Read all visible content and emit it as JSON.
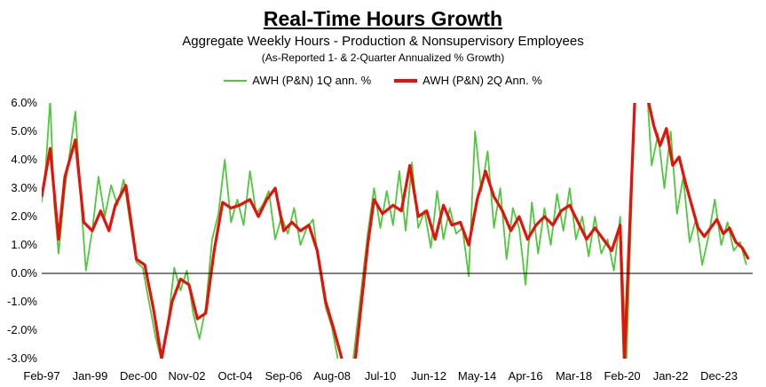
{
  "chart_data": {
    "type": "line",
    "title": "Real-Time Hours Growth",
    "subtitle": "Aggregate Weekly Hours - Production & Nonsupervisory Employees",
    "note": "(As-Reported 1- & 2-Quarter Annualized % Growth)",
    "xlabel": "",
    "ylabel": "",
    "ylim": [
      -3.0,
      6.0
    ],
    "xlim": [
      "1997-02",
      "2025-04"
    ],
    "y_ticks": [
      "6.0%",
      "5.0%",
      "4.0%",
      "3.0%",
      "2.0%",
      "1.0%",
      "0.0%",
      "-1.0%",
      "-2.0%",
      "-3.0%"
    ],
    "x_ticks": [
      "Feb-97",
      "Jan-99",
      "Dec-00",
      "Nov-02",
      "Oct-04",
      "Sep-06",
      "Aug-08",
      "Jul-10",
      "Jun-12",
      "May-14",
      "Apr-16",
      "Mar-18",
      "Feb-20",
      "Jan-22",
      "Dec-23"
    ],
    "grid": false,
    "legend_position": "top-center",
    "series": [
      {
        "name": "AWH (P&N) 1Q ann. %",
        "color": "#4fc83c",
        "points": [
          [
            "1997-02",
            2.5
          ],
          [
            "1997-04",
            3.8
          ],
          [
            "1997-06",
            6.1
          ],
          [
            "1997-08",
            2.4
          ],
          [
            "1997-10",
            0.7
          ],
          [
            "1998-01",
            3.0
          ],
          [
            "1998-04",
            4.6
          ],
          [
            "1998-06",
            5.7
          ],
          [
            "1998-09",
            2.2
          ],
          [
            "1998-11",
            0.1
          ],
          [
            "1999-02",
            1.5
          ],
          [
            "1999-05",
            3.4
          ],
          [
            "1999-08",
            2.0
          ],
          [
            "1999-11",
            3.1
          ],
          [
            "2000-02",
            2.4
          ],
          [
            "2000-05",
            3.3
          ],
          [
            "2000-08",
            1.8
          ],
          [
            "2000-11",
            0.4
          ],
          [
            "2001-02",
            0.2
          ],
          [
            "2001-05",
            -1.0
          ],
          [
            "2001-08",
            -2.2
          ],
          [
            "2001-11",
            -3.1
          ],
          [
            "2002-02",
            -1.8
          ],
          [
            "2002-05",
            0.2
          ],
          [
            "2002-08",
            -0.6
          ],
          [
            "2002-11",
            0.1
          ],
          [
            "2003-02",
            -1.4
          ],
          [
            "2003-05",
            -2.3
          ],
          [
            "2003-08",
            -1.2
          ],
          [
            "2003-11",
            1.2
          ],
          [
            "2004-02",
            2.1
          ],
          [
            "2004-05",
            4.0
          ],
          [
            "2004-08",
            1.8
          ],
          [
            "2004-11",
            2.6
          ],
          [
            "2005-02",
            1.7
          ],
          [
            "2005-05",
            3.6
          ],
          [
            "2005-08",
            2.1
          ],
          [
            "2005-11",
            2.4
          ],
          [
            "2006-02",
            2.9
          ],
          [
            "2006-05",
            1.2
          ],
          [
            "2006-08",
            2.0
          ],
          [
            "2006-11",
            1.4
          ],
          [
            "2007-02",
            2.3
          ],
          [
            "2007-05",
            1.0
          ],
          [
            "2007-08",
            1.6
          ],
          [
            "2007-11",
            1.9
          ],
          [
            "2008-02",
            0.2
          ],
          [
            "2008-05",
            -1.2
          ],
          [
            "2008-08",
            -1.9
          ],
          [
            "2008-11",
            -3.1
          ],
          [
            "2009-06",
            -3.1
          ],
          [
            "2010-01",
            1.4
          ],
          [
            "2010-04",
            3.0
          ],
          [
            "2010-07",
            1.6
          ],
          [
            "2010-10",
            2.9
          ],
          [
            "2011-01",
            1.7
          ],
          [
            "2011-04",
            3.6
          ],
          [
            "2011-07",
            1.5
          ],
          [
            "2011-10",
            3.9
          ],
          [
            "2012-01",
            1.6
          ],
          [
            "2012-04",
            2.2
          ],
          [
            "2012-07",
            0.9
          ],
          [
            "2012-10",
            2.9
          ],
          [
            "2013-01",
            1.2
          ],
          [
            "2013-04",
            2.3
          ],
          [
            "2013-07",
            1.4
          ],
          [
            "2013-10",
            1.6
          ],
          [
            "2014-01",
            -0.1
          ],
          [
            "2014-04",
            5.0
          ],
          [
            "2014-07",
            2.9
          ],
          [
            "2014-10",
            4.3
          ],
          [
            "2015-01",
            1.6
          ],
          [
            "2015-04",
            3.0
          ],
          [
            "2015-07",
            0.5
          ],
          [
            "2015-10",
            2.3
          ],
          [
            "2016-01",
            1.6
          ],
          [
            "2016-04",
            -0.4
          ],
          [
            "2016-07",
            2.5
          ],
          [
            "2016-10",
            0.7
          ],
          [
            "2017-01",
            2.3
          ],
          [
            "2017-04",
            1.0
          ],
          [
            "2017-07",
            2.8
          ],
          [
            "2017-10",
            1.5
          ],
          [
            "2018-01",
            3.0
          ],
          [
            "2018-04",
            1.2
          ],
          [
            "2018-07",
            2.0
          ],
          [
            "2018-10",
            0.6
          ],
          [
            "2019-01",
            2.0
          ],
          [
            "2019-04",
            0.7
          ],
          [
            "2019-07",
            1.2
          ],
          [
            "2019-10",
            0.1
          ],
          [
            "2020-01",
            2.0
          ],
          [
            "2020-04",
            -3.1
          ],
          [
            "2020-08",
            6.2
          ],
          [
            "2020-11",
            6.2
          ],
          [
            "2021-02",
            6.2
          ],
          [
            "2021-04",
            3.8
          ],
          [
            "2021-07",
            4.9
          ],
          [
            "2021-10",
            3.0
          ],
          [
            "2022-01",
            5.0
          ],
          [
            "2022-04",
            2.1
          ],
          [
            "2022-07",
            3.4
          ],
          [
            "2022-10",
            1.1
          ],
          [
            "2023-01",
            1.9
          ],
          [
            "2023-04",
            0.3
          ],
          [
            "2023-07",
            1.3
          ],
          [
            "2023-10",
            2.6
          ],
          [
            "2024-01",
            1.0
          ],
          [
            "2024-04",
            1.8
          ],
          [
            "2024-07",
            0.8
          ],
          [
            "2024-10",
            1.1
          ],
          [
            "2025-01",
            0.3
          ]
        ]
      },
      {
        "name": "AWH (P&N) 2Q Ann. %",
        "color": "#e3120b",
        "points": [
          [
            "1997-02",
            2.7
          ],
          [
            "1997-06",
            4.4
          ],
          [
            "1997-10",
            1.2
          ],
          [
            "1998-01",
            3.4
          ],
          [
            "1998-06",
            4.7
          ],
          [
            "1998-10",
            1.8
          ],
          [
            "1999-02",
            1.5
          ],
          [
            "1999-06",
            2.2
          ],
          [
            "1999-10",
            1.5
          ],
          [
            "2000-01",
            2.4
          ],
          [
            "2000-06",
            3.1
          ],
          [
            "2000-11",
            0.5
          ],
          [
            "2001-03",
            0.3
          ],
          [
            "2001-07",
            -1.2
          ],
          [
            "2001-11",
            -3.0
          ],
          [
            "2002-04",
            -1.0
          ],
          [
            "2002-08",
            -0.2
          ],
          [
            "2002-12",
            -0.4
          ],
          [
            "2003-04",
            -1.6
          ],
          [
            "2003-08",
            -1.4
          ],
          [
            "2003-12",
            0.8
          ],
          [
            "2004-04",
            2.5
          ],
          [
            "2004-08",
            2.3
          ],
          [
            "2004-12",
            2.4
          ],
          [
            "2005-05",
            2.6
          ],
          [
            "2005-09",
            2.0
          ],
          [
            "2006-01",
            2.6
          ],
          [
            "2006-05",
            3.0
          ],
          [
            "2006-09",
            1.5
          ],
          [
            "2007-01",
            1.8
          ],
          [
            "2007-05",
            1.5
          ],
          [
            "2007-09",
            1.7
          ],
          [
            "2008-01",
            0.8
          ],
          [
            "2008-05",
            -1.0
          ],
          [
            "2008-09",
            -2.0
          ],
          [
            "2009-01",
            -3.1
          ],
          [
            "2009-07",
            -3.1
          ],
          [
            "2010-01",
            1.0
          ],
          [
            "2010-04",
            2.6
          ],
          [
            "2010-08",
            2.1
          ],
          [
            "2011-01",
            2.4
          ],
          [
            "2011-05",
            2.2
          ],
          [
            "2011-09",
            3.8
          ],
          [
            "2012-01",
            2.0
          ],
          [
            "2012-05",
            2.2
          ],
          [
            "2012-09",
            1.2
          ],
          [
            "2013-01",
            2.4
          ],
          [
            "2013-05",
            1.7
          ],
          [
            "2013-09",
            1.8
          ],
          [
            "2014-01",
            1.0
          ],
          [
            "2014-05",
            2.6
          ],
          [
            "2014-09",
            3.6
          ],
          [
            "2015-01",
            2.7
          ],
          [
            "2015-05",
            2.2
          ],
          [
            "2015-09",
            1.5
          ],
          [
            "2016-01",
            2.0
          ],
          [
            "2016-05",
            1.2
          ],
          [
            "2016-09",
            1.7
          ],
          [
            "2017-01",
            2.0
          ],
          [
            "2017-05",
            1.7
          ],
          [
            "2017-09",
            2.2
          ],
          [
            "2018-01",
            2.4
          ],
          [
            "2018-05",
            1.8
          ],
          [
            "2018-09",
            1.2
          ],
          [
            "2019-01",
            1.6
          ],
          [
            "2019-05",
            1.2
          ],
          [
            "2019-09",
            0.8
          ],
          [
            "2020-01",
            1.7
          ],
          [
            "2020-03",
            -3.1
          ],
          [
            "2020-08",
            6.2
          ],
          [
            "2021-02",
            6.2
          ],
          [
            "2021-05",
            5.2
          ],
          [
            "2021-08",
            4.5
          ],
          [
            "2021-11",
            5.1
          ],
          [
            "2022-02",
            3.8
          ],
          [
            "2022-05",
            4.1
          ],
          [
            "2022-08",
            3.2
          ],
          [
            "2022-11",
            2.4
          ],
          [
            "2023-02",
            1.6
          ],
          [
            "2023-05",
            1.3
          ],
          [
            "2023-08",
            1.6
          ],
          [
            "2023-11",
            1.9
          ],
          [
            "2024-02",
            1.4
          ],
          [
            "2024-05",
            1.6
          ],
          [
            "2024-08",
            1.1
          ],
          [
            "2024-11",
            0.9
          ],
          [
            "2025-02",
            0.5
          ]
        ]
      }
    ]
  }
}
